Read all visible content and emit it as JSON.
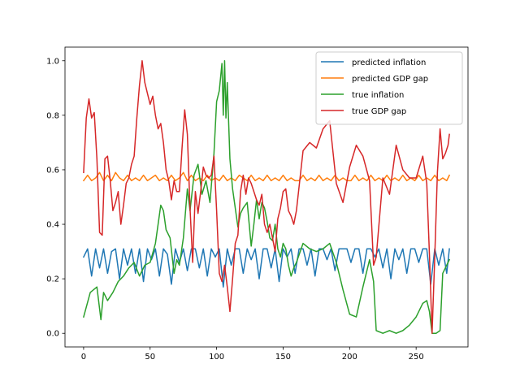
{
  "chart_data": {
    "type": "line",
    "title": "",
    "xlabel": "",
    "ylabel": "",
    "xlim": [
      -14,
      289
    ],
    "ylim": [
      -0.05,
      1.05
    ],
    "xticks": [
      0,
      50,
      100,
      150,
      200,
      250
    ],
    "yticks": [
      0.0,
      0.2,
      0.4,
      0.6,
      0.8,
      1.0
    ],
    "xtick_labels": [
      "0",
      "50",
      "100",
      "150",
      "200",
      "250"
    ],
    "ytick_labels": [
      "0.0",
      "0.2",
      "0.4",
      "0.6",
      "0.8",
      "1.0"
    ],
    "grid": false,
    "legend_position": "top-right",
    "series": [
      {
        "name": "predicted inflation",
        "color": "#1f77b4",
        "x": [
          0,
          3,
          6,
          9,
          12,
          15,
          18,
          21,
          24,
          27,
          30,
          33,
          36,
          39,
          42,
          45,
          48,
          51,
          54,
          57,
          60,
          63,
          66,
          69,
          72,
          75,
          78,
          81,
          84,
          87,
          90,
          93,
          96,
          99,
          102,
          105,
          108,
          111,
          114,
          117,
          120,
          123,
          126,
          129,
          132,
          135,
          138,
          141,
          144,
          147,
          150,
          153,
          156,
          159,
          162,
          165,
          168,
          171,
          174,
          177,
          180,
          183,
          186,
          189,
          192,
          195,
          198,
          201,
          204,
          207,
          210,
          213,
          216,
          219,
          222,
          225,
          228,
          231,
          234,
          237,
          240,
          243,
          246,
          249,
          252,
          255,
          258,
          261,
          264,
          267,
          270,
          273,
          275
        ],
        "y": [
          0.28,
          0.31,
          0.21,
          0.31,
          0.24,
          0.31,
          0.22,
          0.3,
          0.31,
          0.2,
          0.31,
          0.25,
          0.31,
          0.22,
          0.31,
          0.19,
          0.31,
          0.27,
          0.31,
          0.21,
          0.31,
          0.29,
          0.18,
          0.31,
          0.26,
          0.31,
          0.23,
          0.31,
          0.31,
          0.24,
          0.31,
          0.21,
          0.31,
          0.28,
          0.31,
          0.17,
          0.31,
          0.25,
          0.31,
          0.31,
          0.22,
          0.31,
          0.27,
          0.31,
          0.2,
          0.31,
          0.31,
          0.24,
          0.31,
          0.19,
          0.31,
          0.28,
          0.31,
          0.22,
          0.31,
          0.31,
          0.25,
          0.31,
          0.21,
          0.31,
          0.31,
          0.27,
          0.31,
          0.23,
          0.31,
          0.31,
          0.31,
          0.26,
          0.31,
          0.31,
          0.22,
          0.31,
          0.31,
          0.28,
          0.31,
          0.24,
          0.31,
          0.2,
          0.31,
          0.27,
          0.31,
          0.22,
          0.31,
          0.31,
          0.26,
          0.31,
          0.31,
          0.18,
          0.31,
          0.25,
          0.31,
          0.22,
          0.31
        ]
      },
      {
        "name": "predicted GDP gap",
        "color": "#ff7f0e",
        "x": [
          0,
          3,
          6,
          9,
          12,
          15,
          18,
          21,
          24,
          27,
          30,
          33,
          36,
          39,
          42,
          45,
          48,
          51,
          54,
          57,
          60,
          63,
          66,
          69,
          72,
          75,
          78,
          81,
          84,
          87,
          90,
          93,
          96,
          99,
          102,
          105,
          108,
          111,
          114,
          117,
          120,
          123,
          126,
          129,
          132,
          135,
          138,
          141,
          144,
          147,
          150,
          153,
          156,
          159,
          162,
          165,
          168,
          171,
          174,
          177,
          180,
          183,
          186,
          189,
          192,
          195,
          198,
          201,
          204,
          207,
          210,
          213,
          216,
          219,
          222,
          225,
          228,
          231,
          234,
          237,
          240,
          243,
          246,
          249,
          252,
          255,
          258,
          261,
          264,
          267,
          270,
          273,
          275
        ],
        "y": [
          0.56,
          0.58,
          0.56,
          0.57,
          0.59,
          0.56,
          0.58,
          0.56,
          0.59,
          0.57,
          0.56,
          0.58,
          0.56,
          0.57,
          0.56,
          0.58,
          0.56,
          0.57,
          0.58,
          0.56,
          0.57,
          0.56,
          0.58,
          0.56,
          0.57,
          0.59,
          0.56,
          0.58,
          0.56,
          0.57,
          0.56,
          0.58,
          0.56,
          0.57,
          0.56,
          0.58,
          0.56,
          0.57,
          0.56,
          0.58,
          0.57,
          0.56,
          0.58,
          0.56,
          0.57,
          0.56,
          0.58,
          0.56,
          0.57,
          0.56,
          0.58,
          0.56,
          0.57,
          0.56,
          0.56,
          0.58,
          0.56,
          0.57,
          0.56,
          0.58,
          0.56,
          0.57,
          0.56,
          0.58,
          0.56,
          0.57,
          0.56,
          0.56,
          0.58,
          0.56,
          0.57,
          0.56,
          0.58,
          0.56,
          0.57,
          0.56,
          0.58,
          0.56,
          0.57,
          0.56,
          0.58,
          0.56,
          0.57,
          0.56,
          0.58,
          0.56,
          0.57,
          0.56,
          0.58,
          0.56,
          0.57,
          0.56,
          0.58
        ]
      },
      {
        "name": "true inflation",
        "color": "#2ca02c",
        "x": [
          0,
          5,
          10,
          13,
          15,
          18,
          22,
          26,
          30,
          34,
          38,
          42,
          46,
          50,
          54,
          58,
          60,
          62,
          65,
          68,
          70,
          72,
          75,
          78,
          80,
          83,
          86,
          89,
          92,
          95,
          98,
          100,
          102,
          104,
          105,
          106,
          107,
          108,
          110,
          112,
          114,
          116,
          118,
          120,
          123,
          126,
          128,
          130,
          132,
          134,
          136,
          138,
          140,
          142,
          144,
          146,
          148,
          150,
          152,
          154,
          156,
          158,
          160,
          165,
          170,
          175,
          180,
          185,
          190,
          195,
          200,
          205,
          210,
          215,
          218,
          220,
          225,
          230,
          235,
          240,
          245,
          250,
          255,
          258,
          260,
          262,
          265,
          268,
          270,
          273,
          275
        ],
        "y": [
          0.06,
          0.15,
          0.17,
          0.05,
          0.15,
          0.12,
          0.15,
          0.19,
          0.21,
          0.24,
          0.26,
          0.21,
          0.25,
          0.26,
          0.33,
          0.47,
          0.45,
          0.38,
          0.35,
          0.22,
          0.27,
          0.25,
          0.35,
          0.53,
          0.45,
          0.58,
          0.62,
          0.51,
          0.56,
          0.48,
          0.66,
          0.85,
          0.89,
          0.99,
          0.8,
          1.0,
          0.79,
          0.92,
          0.64,
          0.53,
          0.46,
          0.39,
          0.44,
          0.46,
          0.48,
          0.32,
          0.4,
          0.49,
          0.42,
          0.48,
          0.46,
          0.41,
          0.35,
          0.34,
          0.4,
          0.31,
          0.28,
          0.33,
          0.31,
          0.25,
          0.21,
          0.24,
          0.26,
          0.33,
          0.31,
          0.3,
          0.31,
          0.33,
          0.26,
          0.16,
          0.07,
          0.06,
          0.17,
          0.27,
          0.19,
          0.01,
          0.0,
          0.01,
          0.0,
          0.01,
          0.03,
          0.06,
          0.11,
          0.12,
          0.08,
          0.0,
          0.0,
          0.01,
          0.22,
          0.25,
          0.27
        ]
      },
      {
        "name": "true GDP gap",
        "color": "#d62728",
        "x": [
          0,
          2,
          4,
          6,
          8,
          10,
          12,
          14,
          16,
          18,
          20,
          22,
          24,
          26,
          28,
          30,
          32,
          34,
          36,
          38,
          40,
          42,
          44,
          46,
          48,
          50,
          52,
          54,
          56,
          58,
          60,
          62,
          64,
          66,
          68,
          70,
          72,
          74,
          76,
          78,
          80,
          82,
          84,
          86,
          88,
          90,
          92,
          94,
          96,
          98,
          100,
          102,
          104,
          106,
          108,
          110,
          112,
          114,
          116,
          118,
          120,
          122,
          124,
          126,
          128,
          130,
          132,
          134,
          136,
          138,
          140,
          142,
          144,
          146,
          148,
          150,
          152,
          154,
          156,
          158,
          160,
          165,
          170,
          175,
          180,
          185,
          190,
          195,
          200,
          205,
          210,
          215,
          218,
          220,
          225,
          230,
          235,
          240,
          245,
          250,
          255,
          258,
          260,
          262,
          264,
          266,
          268,
          270,
          272,
          274,
          275
        ],
        "y": [
          0.59,
          0.79,
          0.86,
          0.79,
          0.81,
          0.64,
          0.37,
          0.36,
          0.64,
          0.65,
          0.56,
          0.45,
          0.48,
          0.52,
          0.4,
          0.47,
          0.55,
          0.57,
          0.62,
          0.65,
          0.79,
          0.91,
          1.0,
          0.92,
          0.88,
          0.84,
          0.87,
          0.8,
          0.75,
          0.77,
          0.7,
          0.6,
          0.56,
          0.49,
          0.56,
          0.52,
          0.52,
          0.68,
          0.82,
          0.73,
          0.46,
          0.26,
          0.52,
          0.44,
          0.52,
          0.61,
          0.58,
          0.57,
          0.58,
          0.65,
          0.45,
          0.22,
          0.19,
          0.25,
          0.17,
          0.08,
          0.2,
          0.33,
          0.36,
          0.52,
          0.58,
          0.51,
          0.57,
          0.55,
          0.52,
          0.49,
          0.47,
          0.51,
          0.4,
          0.37,
          0.4,
          0.35,
          0.3,
          0.42,
          0.46,
          0.52,
          0.53,
          0.45,
          0.43,
          0.4,
          0.45,
          0.67,
          0.7,
          0.68,
          0.75,
          0.78,
          0.55,
          0.48,
          0.61,
          0.69,
          0.65,
          0.56,
          0.25,
          0.28,
          0.57,
          0.51,
          0.69,
          0.6,
          0.57,
          0.57,
          0.65,
          0.55,
          0.29,
          0.0,
          0.28,
          0.59,
          0.75,
          0.64,
          0.66,
          0.69,
          0.73
        ]
      }
    ]
  }
}
